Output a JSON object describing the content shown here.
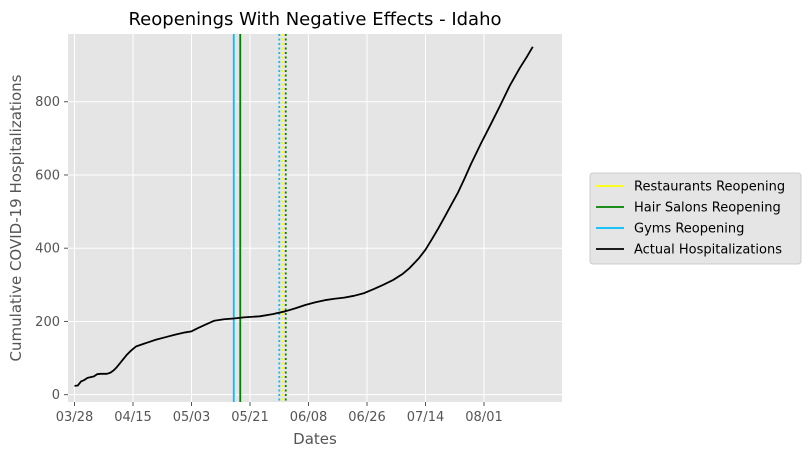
{
  "chart_data": {
    "type": "line",
    "title": "Reopenings With Negative Effects - Idaho",
    "xlabel": "Dates",
    "ylabel": "Cumulative COVID-19 Hospitalizations",
    "x_axis": {
      "type": "date",
      "year": 2020,
      "start": "2020-03-26",
      "end": "2020-08-25"
    },
    "xticks": [
      {
        "date": "2020-03-28",
        "label": "03/28"
      },
      {
        "date": "2020-04-15",
        "label": "04/15"
      },
      {
        "date": "2020-05-03",
        "label": "05/03"
      },
      {
        "date": "2020-05-21",
        "label": "05/21"
      },
      {
        "date": "2020-06-08",
        "label": "06/08"
      },
      {
        "date": "2020-06-26",
        "label": "06/26"
      },
      {
        "date": "2020-07-14",
        "label": "07/14"
      },
      {
        "date": "2020-08-01",
        "label": "08/01"
      }
    ],
    "ylim": [
      -20,
      985
    ],
    "yticks": [
      0,
      200,
      400,
      600,
      800
    ],
    "grid": true,
    "background": "#e5e5e5",
    "legend_position": "right",
    "legend": [
      {
        "label": "Restaurants Reopening",
        "color": "#ffff00",
        "style": "solid"
      },
      {
        "label": "Hair Salons Reopening",
        "color": "#008000",
        "style": "solid"
      },
      {
        "label": "Gyms Reopening",
        "color": "#00bfff",
        "style": "solid"
      },
      {
        "label": "Actual Hospitalizations",
        "color": "#000000",
        "style": "solid"
      }
    ],
    "vertical_lines": [
      {
        "date": "2020-05-16",
        "color": "#00bfff",
        "style": "solid"
      },
      {
        "date": "2020-05-18",
        "color": "#ffff00",
        "style": "solid"
      },
      {
        "date": "2020-05-18",
        "color": "#008000",
        "style": "solid"
      },
      {
        "date": "2020-05-30",
        "color": "#00bfff",
        "style": "dotted"
      },
      {
        "date": "2020-05-31",
        "color": "#ffff00",
        "style": "dotted"
      },
      {
        "date": "2020-06-01",
        "color": "#008000",
        "style": "dotted"
      }
    ],
    "series": [
      {
        "color": "#000000",
        "points": [
          [
            "2020-03-28",
            24
          ],
          [
            "2020-03-29",
            25
          ],
          [
            "2020-03-30",
            36
          ],
          [
            "2020-03-31",
            40
          ],
          [
            "2020-04-01",
            46
          ],
          [
            "2020-04-02",
            48
          ],
          [
            "2020-04-03",
            50
          ],
          [
            "2020-04-04",
            56
          ],
          [
            "2020-04-05",
            57
          ],
          [
            "2020-04-07",
            57
          ],
          [
            "2020-04-08",
            60
          ],
          [
            "2020-04-09",
            66
          ],
          [
            "2020-04-10",
            75
          ],
          [
            "2020-04-11",
            86
          ],
          [
            "2020-04-12",
            97
          ],
          [
            "2020-04-13",
            108
          ],
          [
            "2020-04-14",
            117
          ],
          [
            "2020-04-15",
            125
          ],
          [
            "2020-04-16",
            132
          ],
          [
            "2020-04-18",
            138
          ],
          [
            "2020-04-20",
            144
          ],
          [
            "2020-04-22",
            150
          ],
          [
            "2020-04-25",
            157
          ],
          [
            "2020-04-28",
            164
          ],
          [
            "2020-05-01",
            170
          ],
          [
            "2020-05-03",
            173
          ],
          [
            "2020-05-05",
            182
          ],
          [
            "2020-05-07",
            190
          ],
          [
            "2020-05-10",
            202
          ],
          [
            "2020-05-13",
            206
          ],
          [
            "2020-05-16",
            208
          ],
          [
            "2020-05-19",
            211
          ],
          [
            "2020-05-24",
            214
          ],
          [
            "2020-05-28",
            220
          ],
          [
            "2020-06-01",
            228
          ],
          [
            "2020-06-04",
            236
          ],
          [
            "2020-06-07",
            245
          ],
          [
            "2020-06-10",
            252
          ],
          [
            "2020-06-13",
            258
          ],
          [
            "2020-06-16",
            262
          ],
          [
            "2020-06-19",
            265
          ],
          [
            "2020-06-22",
            270
          ],
          [
            "2020-06-25",
            277
          ],
          [
            "2020-06-28",
            288
          ],
          [
            "2020-07-01",
            300
          ],
          [
            "2020-07-04",
            313
          ],
          [
            "2020-07-07",
            330
          ],
          [
            "2020-07-09",
            345
          ],
          [
            "2020-07-12",
            373
          ],
          [
            "2020-07-14",
            396
          ],
          [
            "2020-07-16",
            425
          ],
          [
            "2020-07-18",
            455
          ],
          [
            "2020-07-20",
            487
          ],
          [
            "2020-07-22",
            520
          ],
          [
            "2020-07-24",
            552
          ],
          [
            "2020-07-26",
            590
          ],
          [
            "2020-07-28",
            630
          ],
          [
            "2020-07-31",
            685
          ],
          [
            "2020-08-03",
            737
          ],
          [
            "2020-08-06",
            790
          ],
          [
            "2020-08-09",
            845
          ],
          [
            "2020-08-12",
            892
          ],
          [
            "2020-08-14",
            920
          ],
          [
            "2020-08-16",
            950
          ]
        ]
      }
    ]
  }
}
